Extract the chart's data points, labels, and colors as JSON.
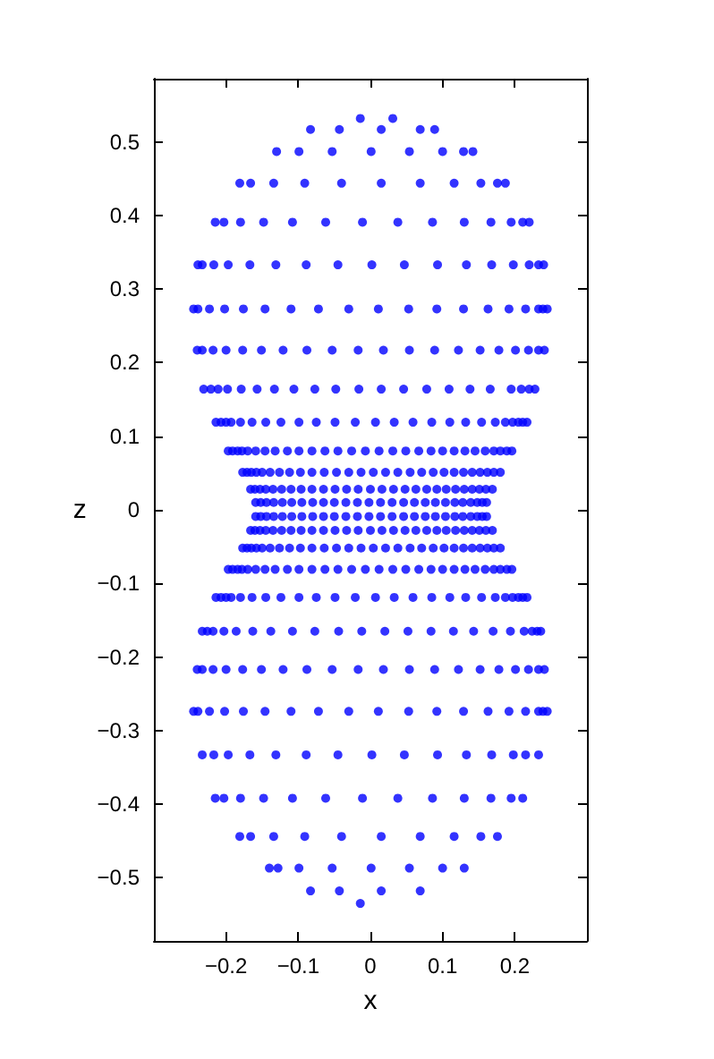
{
  "chart_data": {
    "type": "scatter",
    "xlabel": "x",
    "ylabel": "z",
    "xlim": [
      -0.3,
      0.3
    ],
    "ylim": [
      -0.586,
      0.586
    ],
    "xticks": [
      -0.2,
      -0.1,
      0,
      0.1,
      0.2
    ],
    "yticks": [
      -0.5,
      -0.4,
      -0.3,
      -0.2,
      -0.1,
      0,
      0.1,
      0.2,
      0.3,
      0.4,
      0.5
    ],
    "marker": "circle",
    "grid": false,
    "series": [
      {
        "color": "#0000ff",
        "x": [
          -0.014,
          0.031
        ],
        "values": [
          0.532,
          0.532
        ]
      },
      {
        "color": "#0000ff",
        "x": [
          -0.083,
          -0.043,
          0.015,
          0.069,
          0.089
        ],
        "values": [
          0.517,
          0.517,
          0.517,
          0.517,
          0.517
        ]
      },
      {
        "color": "#0000ff",
        "x": [
          -0.13,
          -0.099,
          -0.053,
          0.001,
          0.054,
          0.1,
          0.129,
          0.142
        ],
        "values": [
          0.487,
          0.487,
          0.487,
          0.487,
          0.487,
          0.487,
          0.487,
          0.487
        ]
      },
      {
        "color": "#0000ff",
        "x": [
          -0.181,
          -0.166,
          -0.134,
          -0.091,
          -0.04,
          0.015,
          0.069,
          0.116,
          0.153,
          0.176,
          0.187
        ],
        "values": [
          0.444,
          0.444,
          0.444,
          0.444,
          0.444,
          0.444,
          0.444,
          0.444,
          0.444,
          0.444,
          0.444
        ]
      },
      {
        "color": "#0000ff",
        "x": [
          -0.215,
          -0.203,
          -0.18,
          -0.148,
          -0.108,
          -0.062,
          -0.011,
          0.038,
          0.086,
          0.13,
          0.167,
          0.195,
          0.211,
          0.22
        ],
        "values": [
          0.391,
          0.391,
          0.391,
          0.391,
          0.391,
          0.391,
          0.391,
          0.391,
          0.391,
          0.391,
          0.391,
          0.391,
          0.391,
          0.391
        ]
      },
      {
        "color": "#0000ff",
        "x": [
          -0.239,
          -0.233,
          -0.217,
          -0.197,
          -0.167,
          -0.131,
          -0.089,
          -0.045,
          0.002,
          0.047,
          0.093,
          0.133,
          0.168,
          0.198,
          0.22,
          0.233,
          0.24
        ],
        "values": [
          0.333,
          0.333,
          0.333,
          0.333,
          0.333,
          0.333,
          0.333,
          0.333,
          0.333,
          0.333,
          0.333,
          0.333,
          0.333,
          0.333,
          0.333,
          0.333,
          0.333
        ]
      },
      {
        "color": "#0000ff",
        "x": [
          -0.245,
          -0.239,
          -0.223,
          -0.202,
          -0.176,
          -0.146,
          -0.11,
          -0.072,
          -0.03,
          0.011,
          0.053,
          0.092,
          0.129,
          0.163,
          0.192,
          0.215,
          0.233,
          0.239,
          0.245
        ],
        "values": [
          0.273,
          0.273,
          0.273,
          0.273,
          0.273,
          0.273,
          0.273,
          0.273,
          0.273,
          0.273,
          0.273,
          0.273,
          0.273,
          0.273,
          0.273,
          0.273,
          0.273,
          0.273,
          0.273
        ]
      },
      {
        "color": "#0000ff",
        "x": [
          -0.24,
          -0.233,
          -0.218,
          -0.2,
          -0.177,
          -0.151,
          -0.121,
          -0.088,
          -0.053,
          -0.017,
          0.018,
          0.054,
          0.089,
          0.122,
          0.152,
          0.178,
          0.201,
          0.219,
          0.233,
          0.241
        ],
        "values": [
          0.217,
          0.217,
          0.217,
          0.217,
          0.217,
          0.217,
          0.217,
          0.217,
          0.217,
          0.217,
          0.217,
          0.217,
          0.217,
          0.217,
          0.217,
          0.217,
          0.217,
          0.217,
          0.217,
          0.217
        ]
      },
      {
        "color": "#0000ff",
        "x": [
          -0.231,
          -0.221,
          -0.211,
          -0.198,
          -0.179,
          -0.157,
          -0.133,
          -0.106,
          -0.077,
          -0.048,
          -0.016,
          0.015,
          0.046,
          0.078,
          0.109,
          0.138,
          0.166,
          0.195,
          0.209,
          0.22,
          0.228
        ],
        "values": [
          0.164,
          0.164,
          0.164,
          0.164,
          0.164,
          0.164,
          0.164,
          0.164,
          0.164,
          0.164,
          0.164,
          0.164,
          0.164,
          0.164,
          0.164,
          0.164,
          0.164,
          0.164,
          0.164,
          0.164,
          0.164
        ]
      },
      {
        "color": "#0000ff",
        "x": [
          -0.214,
          -0.207,
          -0.2,
          -0.193,
          -0.18,
          -0.164,
          -0.145,
          -0.124,
          -0.099,
          -0.075,
          -0.049,
          -0.021,
          0.007,
          0.033,
          0.059,
          0.085,
          0.11,
          0.132,
          0.154,
          0.173,
          0.187,
          0.197,
          0.205,
          0.211,
          0.217
        ],
        "values": [
          0.119,
          0.119,
          0.119,
          0.119,
          0.119,
          0.119,
          0.119,
          0.119,
          0.119,
          0.119,
          0.119,
          0.119,
          0.119,
          0.119,
          0.119,
          0.119,
          0.119,
          0.119,
          0.119,
          0.119,
          0.119,
          0.119,
          0.119,
          0.119,
          0.119
        ]
      },
      {
        "color": "#0000ff",
        "x": [
          -0.197,
          -0.191,
          -0.184,
          -0.178,
          -0.17,
          -0.159,
          -0.146,
          -0.132,
          -0.115,
          -0.099,
          -0.081,
          -0.063,
          -0.045,
          -0.026,
          -0.007,
          0.012,
          0.031,
          0.049,
          0.067,
          0.084,
          0.1,
          0.116,
          0.131,
          0.145,
          0.159,
          0.171,
          0.18,
          0.189,
          0.196
        ],
        "values": [
          0.08,
          0.08,
          0.08,
          0.08,
          0.08,
          0.08,
          0.08,
          0.08,
          0.08,
          0.08,
          0.08,
          0.08,
          0.08,
          0.08,
          0.08,
          0.08,
          0.08,
          0.08,
          0.08,
          0.08,
          0.08,
          0.08,
          0.08,
          0.08,
          0.08,
          0.08,
          0.08,
          0.08,
          0.08
        ]
      },
      {
        "color": "#0000ff",
        "x": [
          -0.177,
          -0.171,
          -0.165,
          -0.158,
          -0.15,
          -0.139,
          -0.126,
          -0.112,
          -0.097,
          -0.081,
          -0.064,
          -0.047,
          -0.03,
          -0.013,
          0.004,
          0.021,
          0.038,
          0.055,
          0.071,
          0.087,
          0.102,
          0.116,
          0.129,
          0.141,
          0.152,
          0.162,
          0.171,
          0.18
        ],
        "values": [
          0.051,
          0.051,
          0.051,
          0.051,
          0.051,
          0.051,
          0.051,
          0.051,
          0.051,
          0.051,
          0.051,
          0.051,
          0.051,
          0.051,
          0.051,
          0.051,
          0.051,
          0.051,
          0.051,
          0.051,
          0.051,
          0.051,
          0.051,
          0.051,
          0.051,
          0.051,
          0.051,
          0.051
        ]
      },
      {
        "color": "#0000ff",
        "x": [
          -0.166,
          -0.16,
          -0.153,
          -0.145,
          -0.135,
          -0.123,
          -0.11,
          -0.096,
          -0.081,
          -0.065,
          -0.049,
          -0.033,
          -0.017,
          0.0,
          0.016,
          0.032,
          0.048,
          0.063,
          0.078,
          0.092,
          0.105,
          0.118,
          0.13,
          0.141,
          0.151,
          0.16,
          0.169
        ],
        "values": [
          0.028,
          0.028,
          0.028,
          0.028,
          0.028,
          0.028,
          0.028,
          0.028,
          0.028,
          0.028,
          0.028,
          0.028,
          0.028,
          0.028,
          0.028,
          0.028,
          0.028,
          0.028,
          0.028,
          0.028,
          0.028,
          0.028,
          0.028,
          0.028,
          0.028,
          0.028,
          0.028
        ]
      },
      {
        "color": "#0000ff",
        "x": [
          -0.159,
          -0.152,
          -0.144,
          -0.134,
          -0.122,
          -0.109,
          -0.095,
          -0.08,
          -0.065,
          -0.05,
          -0.034,
          -0.018,
          -0.002,
          0.014,
          0.03,
          0.046,
          0.061,
          0.076,
          0.09,
          0.104,
          0.117,
          0.128,
          0.139,
          0.148,
          0.155,
          0.161
        ],
        "values": [
          0.01,
          0.01,
          0.01,
          0.01,
          0.01,
          0.01,
          0.01,
          0.01,
          0.01,
          0.01,
          0.01,
          0.01,
          0.01,
          0.01,
          0.01,
          0.01,
          0.01,
          0.01,
          0.01,
          0.01,
          0.01,
          0.01,
          0.01,
          0.01,
          0.01,
          0.01
        ]
      },
      {
        "color": "#0000ff",
        "x": [
          -0.159,
          -0.152,
          -0.144,
          -0.134,
          -0.122,
          -0.109,
          -0.095,
          -0.08,
          -0.065,
          -0.05,
          -0.034,
          -0.018,
          -0.002,
          0.014,
          0.03,
          0.046,
          0.061,
          0.076,
          0.09,
          0.104,
          0.117,
          0.128,
          0.139,
          0.148,
          0.155,
          0.161
        ],
        "values": [
          -0.009,
          -0.009,
          -0.009,
          -0.009,
          -0.009,
          -0.009,
          -0.009,
          -0.009,
          -0.009,
          -0.009,
          -0.009,
          -0.009,
          -0.009,
          -0.009,
          -0.009,
          -0.009,
          -0.009,
          -0.009,
          -0.009,
          -0.009,
          -0.009,
          -0.009,
          -0.009,
          -0.009,
          -0.009,
          -0.009
        ]
      },
      {
        "color": "#0000ff",
        "x": [
          -0.166,
          -0.16,
          -0.153,
          -0.145,
          -0.135,
          -0.123,
          -0.11,
          -0.096,
          -0.081,
          -0.065,
          -0.049,
          -0.033,
          -0.017,
          0.0,
          0.016,
          0.032,
          0.048,
          0.063,
          0.078,
          0.092,
          0.105,
          0.118,
          0.13,
          0.141,
          0.151,
          0.16,
          0.169
        ],
        "values": [
          -0.028,
          -0.028,
          -0.028,
          -0.028,
          -0.028,
          -0.028,
          -0.028,
          -0.028,
          -0.028,
          -0.028,
          -0.028,
          -0.028,
          -0.028,
          -0.028,
          -0.028,
          -0.028,
          -0.028,
          -0.028,
          -0.028,
          -0.028,
          -0.028,
          -0.028,
          -0.028,
          -0.028,
          -0.028,
          -0.028,
          -0.028
        ]
      },
      {
        "color": "#0000ff",
        "x": [
          -0.177,
          -0.171,
          -0.165,
          -0.158,
          -0.15,
          -0.139,
          -0.126,
          -0.112,
          -0.097,
          -0.081,
          -0.064,
          -0.047,
          -0.03,
          -0.013,
          0.004,
          0.021,
          0.038,
          0.055,
          0.071,
          0.087,
          0.102,
          0.116,
          0.129,
          0.141,
          0.152,
          0.162,
          0.171,
          0.18
        ],
        "values": [
          -0.052,
          -0.052,
          -0.052,
          -0.052,
          -0.052,
          -0.052,
          -0.052,
          -0.052,
          -0.052,
          -0.052,
          -0.052,
          -0.052,
          -0.052,
          -0.052,
          -0.052,
          -0.052,
          -0.052,
          -0.052,
          -0.052,
          -0.052,
          -0.052,
          -0.052,
          -0.052,
          -0.052,
          -0.052,
          -0.052,
          -0.052,
          -0.052
        ]
      },
      {
        "color": "#0000ff",
        "x": [
          -0.197,
          -0.191,
          -0.184,
          -0.178,
          -0.17,
          -0.159,
          -0.146,
          -0.132,
          -0.115,
          -0.099,
          -0.081,
          -0.063,
          -0.045,
          -0.026,
          -0.007,
          0.012,
          0.031,
          0.049,
          0.067,
          0.084,
          0.1,
          0.116,
          0.131,
          0.145,
          0.159,
          0.171,
          0.18,
          0.189,
          0.196
        ],
        "values": [
          -0.081,
          -0.081,
          -0.081,
          -0.081,
          -0.081,
          -0.081,
          -0.081,
          -0.081,
          -0.081,
          -0.081,
          -0.081,
          -0.081,
          -0.081,
          -0.081,
          -0.081,
          -0.081,
          -0.081,
          -0.081,
          -0.081,
          -0.081,
          -0.081,
          -0.081,
          -0.081,
          -0.081,
          -0.081,
          -0.081,
          -0.081,
          -0.081,
          -0.081
        ]
      },
      {
        "color": "#0000ff",
        "x": [
          -0.214,
          -0.207,
          -0.2,
          -0.193,
          -0.18,
          -0.164,
          -0.145,
          -0.124,
          -0.099,
          -0.075,
          -0.049,
          -0.021,
          0.007,
          0.033,
          0.059,
          0.085,
          0.11,
          0.132,
          0.154,
          0.173,
          0.187,
          0.197,
          0.205,
          0.211,
          0.217
        ],
        "values": [
          -0.119,
          -0.119,
          -0.119,
          -0.119,
          -0.119,
          -0.119,
          -0.119,
          -0.119,
          -0.119,
          -0.119,
          -0.119,
          -0.119,
          -0.119,
          -0.119,
          -0.119,
          -0.119,
          -0.119,
          -0.119,
          -0.119,
          -0.119,
          -0.119,
          -0.119,
          -0.119,
          -0.119,
          -0.119
        ]
      },
      {
        "color": "#0000ff",
        "x": [
          -0.233,
          -0.226,
          -0.218,
          -0.203,
          -0.186,
          -0.163,
          -0.138,
          -0.108,
          -0.077,
          -0.044,
          -0.012,
          0.02,
          0.052,
          0.084,
          0.115,
          0.143,
          0.17,
          0.194,
          0.213,
          0.224,
          0.231,
          0.236
        ],
        "values": [
          -0.165,
          -0.165,
          -0.165,
          -0.165,
          -0.165,
          -0.165,
          -0.165,
          -0.165,
          -0.165,
          -0.165,
          -0.165,
          -0.165,
          -0.165,
          -0.165,
          -0.165,
          -0.165,
          -0.165,
          -0.165,
          -0.165,
          -0.165,
          -0.165,
          -0.165
        ]
      },
      {
        "color": "#0000ff",
        "x": [
          -0.24,
          -0.233,
          -0.218,
          -0.2,
          -0.177,
          -0.151,
          -0.121,
          -0.088,
          -0.053,
          -0.017,
          0.018,
          0.054,
          0.089,
          0.122,
          0.152,
          0.178,
          0.201,
          0.219,
          0.233,
          0.241
        ],
        "values": [
          -0.217,
          -0.217,
          -0.217,
          -0.217,
          -0.217,
          -0.217,
          -0.217,
          -0.217,
          -0.217,
          -0.217,
          -0.217,
          -0.217,
          -0.217,
          -0.217,
          -0.217,
          -0.217,
          -0.217,
          -0.217,
          -0.217,
          -0.217
        ]
      },
      {
        "color": "#0000ff",
        "x": [
          -0.245,
          -0.239,
          -0.223,
          -0.202,
          -0.176,
          -0.146,
          -0.11,
          -0.072,
          -0.03,
          0.011,
          0.053,
          0.092,
          0.129,
          0.163,
          0.192,
          0.215,
          0.233,
          0.239,
          0.245
        ],
        "values": [
          -0.274,
          -0.274,
          -0.274,
          -0.274,
          -0.274,
          -0.274,
          -0.274,
          -0.274,
          -0.274,
          -0.274,
          -0.274,
          -0.274,
          -0.274,
          -0.274,
          -0.274,
          -0.274,
          -0.274,
          -0.274,
          -0.274
        ]
      },
      {
        "color": "#0000ff",
        "x": [
          -0.233,
          -0.217,
          -0.197,
          -0.167,
          -0.131,
          -0.089,
          -0.045,
          0.002,
          0.047,
          0.093,
          0.133,
          0.168,
          0.198,
          0.215,
          0.233
        ],
        "values": [
          -0.333,
          -0.333,
          -0.333,
          -0.333,
          -0.333,
          -0.333,
          -0.333,
          -0.333,
          -0.333,
          -0.333,
          -0.333,
          -0.333,
          -0.333,
          -0.333,
          -0.333
        ]
      },
      {
        "color": "#0000ff",
        "x": [
          -0.215,
          -0.203,
          -0.18,
          -0.148,
          -0.108,
          -0.062,
          -0.011,
          0.038,
          0.086,
          0.13,
          0.167,
          0.195,
          0.211
        ],
        "values": [
          -0.392,
          -0.392,
          -0.392,
          -0.392,
          -0.392,
          -0.392,
          -0.392,
          -0.392,
          -0.392,
          -0.392,
          -0.392,
          -0.392,
          -0.392
        ]
      },
      {
        "color": "#0000ff",
        "x": [
          -0.181,
          -0.166,
          -0.134,
          -0.091,
          -0.04,
          0.015,
          0.069,
          0.116,
          0.153,
          0.176
        ],
        "values": [
          -0.444,
          -0.444,
          -0.444,
          -0.444,
          -0.444,
          -0.444,
          -0.444,
          -0.444,
          -0.444,
          -0.444
        ]
      },
      {
        "color": "#0000ff",
        "x": [
          -0.14,
          -0.128,
          -0.099,
          -0.053,
          0.001,
          0.054,
          0.1,
          0.13
        ],
        "values": [
          -0.487,
          -0.487,
          -0.487,
          -0.487,
          -0.487,
          -0.487,
          -0.487,
          -0.487
        ]
      },
      {
        "color": "#0000ff",
        "x": [
          -0.083,
          -0.043,
          0.015,
          0.069
        ],
        "values": [
          -0.518,
          -0.518,
          -0.518,
          -0.518
        ]
      },
      {
        "color": "#0000ff",
        "x": [
          -0.014
        ],
        "values": [
          -0.535
        ]
      }
    ]
  }
}
